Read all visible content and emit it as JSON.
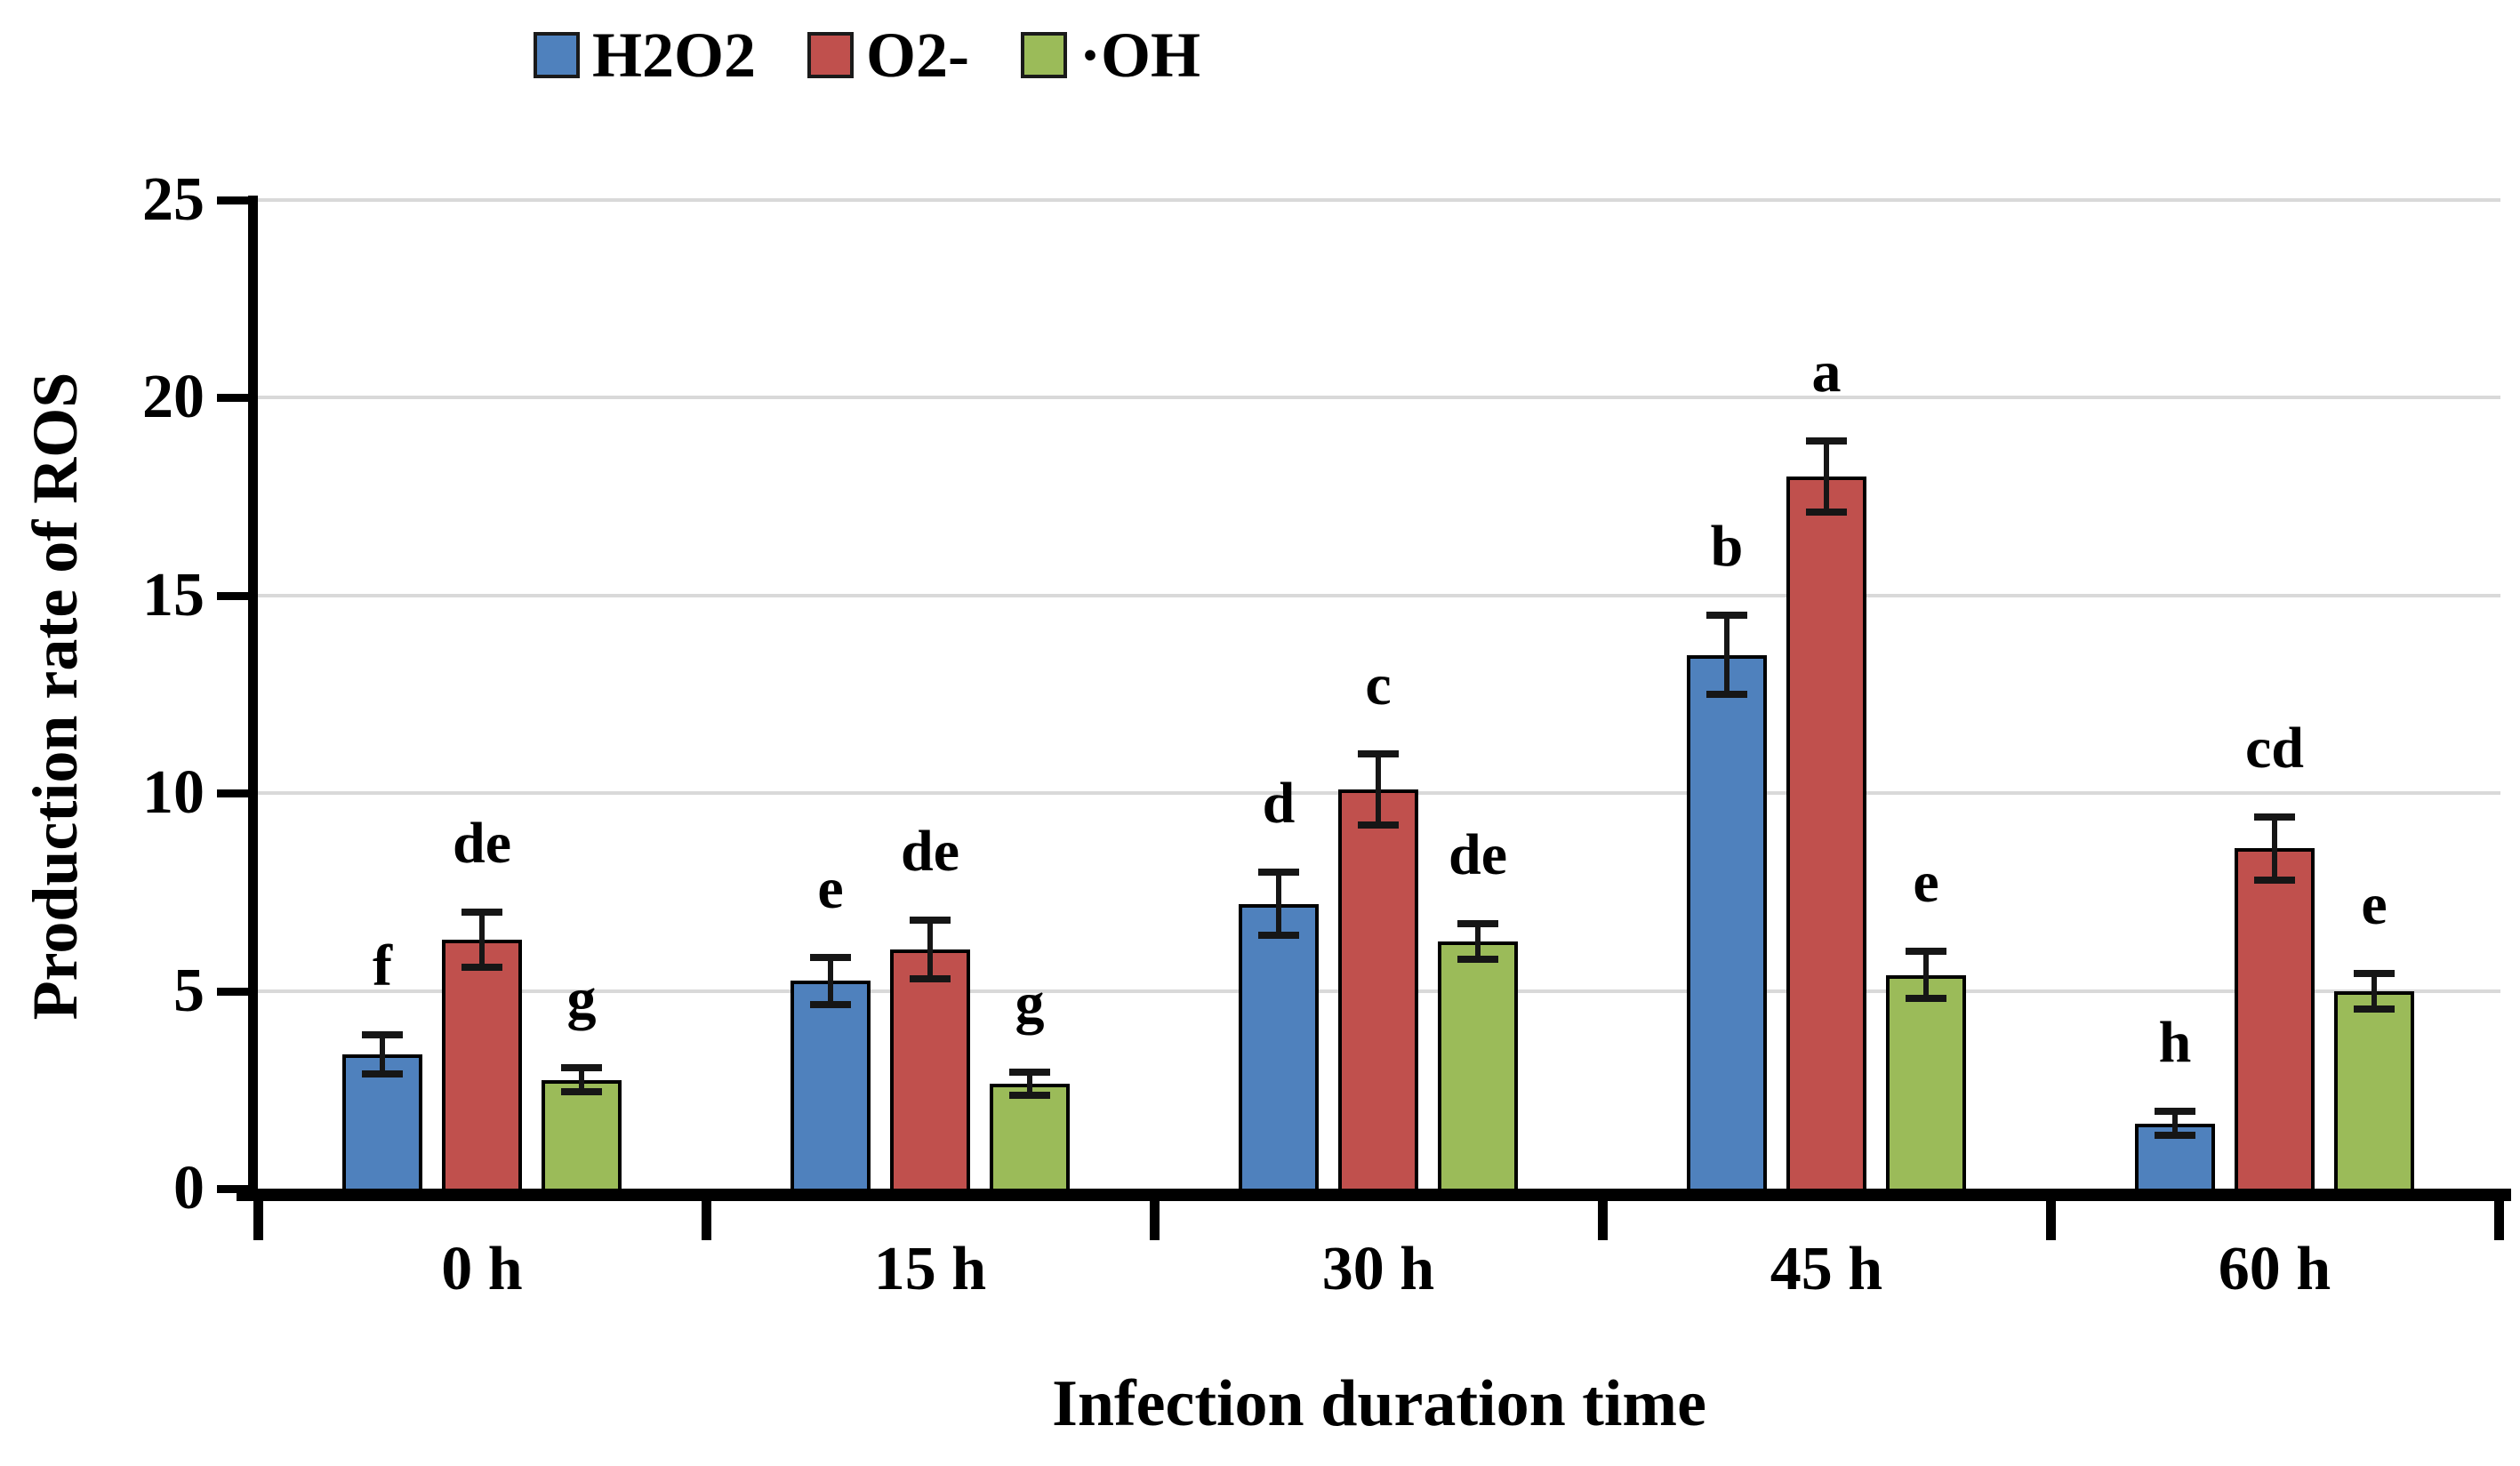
{
  "chart_data": {
    "type": "bar",
    "title": "",
    "xlabel": "Infection duration time",
    "ylabel": "Production rate of ROS",
    "categories": [
      "0 h",
      "15 h",
      "30 h",
      "45 h",
      "60 h"
    ],
    "ylim": [
      0,
      25
    ],
    "y_ticks": [
      "0",
      "5",
      "10",
      "15",
      "20",
      "25"
    ],
    "grid": true,
    "legend_position": "top-left",
    "series": [
      {
        "name": "H2O2",
        "color": "#4F81BD",
        "values": [
          3.4,
          5.25,
          7.2,
          13.5,
          1.65
        ],
        "errors": [
          0.5,
          0.6,
          0.8,
          1.0,
          0.3
        ],
        "letters": [
          "f",
          "e",
          "d",
          "b",
          "h"
        ]
      },
      {
        "name": "O2-",
        "color": "#C0504D",
        "values": [
          6.3,
          6.05,
          10.1,
          18.0,
          8.6
        ],
        "errors": [
          0.7,
          0.75,
          0.9,
          0.9,
          0.8
        ],
        "letters": [
          "de",
          "de",
          "c",
          "a",
          "cd"
        ]
      },
      {
        "name": "·OH",
        "color": "#9BBB59",
        "values": [
          2.75,
          2.65,
          6.25,
          5.4,
          5.0
        ],
        "errors": [
          0.3,
          0.3,
          0.45,
          0.6,
          0.45
        ],
        "letters": [
          "g",
          "g",
          "de",
          "e",
          "e"
        ]
      }
    ]
  },
  "colors": {
    "background": "#FFFFFF",
    "gridline": "#D9D9D9",
    "axis": "#000000",
    "text": "#000000",
    "error_bar": "#161616"
  }
}
